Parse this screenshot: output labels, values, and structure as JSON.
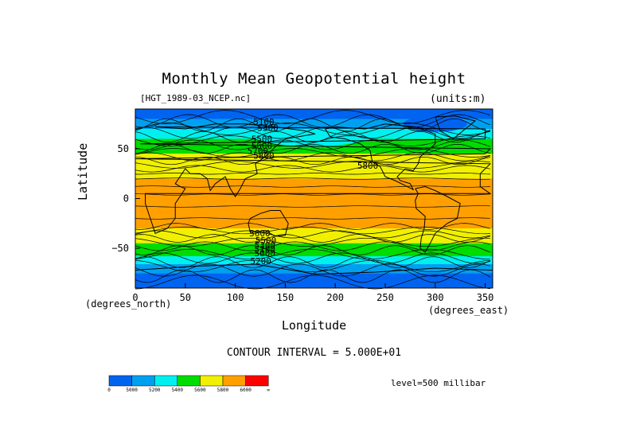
{
  "chart_data": {
    "type": "heatmap",
    "title": "Monthly Mean Geopotential height",
    "file_label": "[HGT_1989-03_NCEP.nc]",
    "units_label": "(units:m)",
    "xlabel": "Longitude",
    "ylabel": "Latitude",
    "x_units": "(degrees_east)",
    "y_units": "(degrees_north)",
    "xlim": [
      0,
      357.5
    ],
    "ylim": [
      -90,
      90
    ],
    "x_ticks": [
      0,
      50,
      100,
      150,
      200,
      250,
      300,
      350
    ],
    "y_ticks": [
      50,
      0,
      -50
    ],
    "y_tick_labels": [
      "50",
      "0",
      "−50"
    ],
    "contour_interval_text": "CONTOUR INTERVAL = 5.000E+01",
    "level_text": "level=500 millibar",
    "contour_labels": [
      "5100",
      "5300",
      "5500",
      "5600",
      "5700",
      "5800",
      "5800",
      "5600",
      "5500",
      "5300",
      "5100",
      "5000",
      "5200"
    ],
    "colorbar": {
      "bins": [
        {
          "color": "#0064f0",
          "label": "0"
        },
        {
          "color": "#00a0f0",
          "label": "5000"
        },
        {
          "color": "#00f0f0",
          "label": "5200"
        },
        {
          "color": "#00dc00",
          "label": "5400"
        },
        {
          "color": "#f0f000",
          "label": "5600"
        },
        {
          "color": "#ffa000",
          "label": "5800"
        },
        {
          "color": "#ff0000",
          "label": "6000"
        }
      ],
      "end_label": "∞"
    },
    "lat_bands": [
      {
        "lat_from": 90,
        "lat_to": 80,
        "color": "#0064f0"
      },
      {
        "lat_from": 80,
        "lat_to": 70,
        "color": "#00a0f0"
      },
      {
        "lat_from": 70,
        "lat_to": 60,
        "color": "#00f0f0"
      },
      {
        "lat_from": 60,
        "lat_to": 45,
        "color": "#00dc00"
      },
      {
        "lat_from": 45,
        "lat_to": 20,
        "color": "#f0f000"
      },
      {
        "lat_from": 20,
        "lat_to": -30,
        "color": "#ffa000"
      },
      {
        "lat_from": -30,
        "lat_to": -45,
        "color": "#f0f000"
      },
      {
        "lat_from": -45,
        "lat_to": -58,
        "color": "#00dc00"
      },
      {
        "lat_from": -58,
        "lat_to": -66,
        "color": "#00f0f0"
      },
      {
        "lat_from": -66,
        "lat_to": -75,
        "color": "#00a0f0"
      },
      {
        "lat_from": -75,
        "lat_to": -90,
        "color": "#0064f0"
      }
    ]
  }
}
